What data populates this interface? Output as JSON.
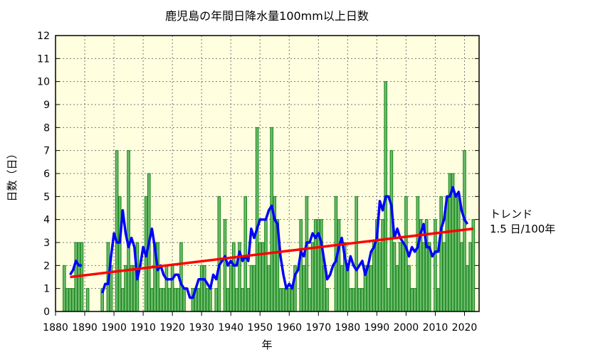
{
  "chart_data": {
    "type": "bar",
    "title": "鹿児島の年間日降水量100mm以上日数",
    "xlabel": "年",
    "ylabel": "日数（日）",
    "xlim": [
      1880,
      2025
    ],
    "ylim": [
      0,
      12
    ],
    "xticks": [
      1880,
      1890,
      1900,
      1910,
      1920,
      1930,
      1940,
      1950,
      1960,
      1970,
      1980,
      1990,
      2000,
      2010,
      2020
    ],
    "yticks": [
      0,
      1,
      2,
      3,
      4,
      5,
      6,
      7,
      8,
      9,
      10,
      11,
      12
    ],
    "grid": true,
    "colors": {
      "background": "#ffffe0",
      "bar_fill": "#6cbb6c",
      "bar_edge": "#17851a",
      "moving_average": "#0000ff",
      "trend": "#ff0000"
    },
    "x": [
      1883,
      1884,
      1885,
      1886,
      1887,
      1888,
      1889,
      1890,
      1891,
      1892,
      1893,
      1894,
      1895,
      1896,
      1897,
      1898,
      1899,
      1900,
      1901,
      1902,
      1903,
      1904,
      1905,
      1906,
      1907,
      1908,
      1909,
      1910,
      1911,
      1912,
      1913,
      1914,
      1915,
      1916,
      1917,
      1918,
      1919,
      1920,
      1921,
      1922,
      1923,
      1924,
      1925,
      1926,
      1927,
      1928,
      1929,
      1930,
      1931,
      1932,
      1933,
      1934,
      1935,
      1936,
      1937,
      1938,
      1939,
      1940,
      1941,
      1942,
      1943,
      1944,
      1945,
      1946,
      1947,
      1948,
      1949,
      1950,
      1951,
      1952,
      1953,
      1954,
      1955,
      1956,
      1957,
      1958,
      1959,
      1960,
      1961,
      1962,
      1963,
      1964,
      1965,
      1966,
      1967,
      1968,
      1969,
      1970,
      1971,
      1972,
      1973,
      1974,
      1975,
      1976,
      1977,
      1978,
      1979,
      1980,
      1981,
      1982,
      1983,
      1984,
      1985,
      1986,
      1987,
      1988,
      1989,
      1990,
      1991,
      1992,
      1993,
      1994,
      1995,
      1996,
      1997,
      1998,
      1999,
      2000,
      2001,
      2002,
      2003,
      2004,
      2005,
      2006,
      2007,
      2008,
      2009,
      2010,
      2011,
      2012,
      2013,
      2014,
      2015,
      2016,
      2017,
      2018,
      2019,
      2020,
      2021,
      2022,
      2023
    ],
    "values": [
      2,
      1,
      1,
      1,
      3,
      3,
      3,
      0,
      1,
      null,
      null,
      0,
      0,
      1,
      0,
      3,
      2,
      0,
      7,
      5,
      1,
      2,
      7,
      2,
      2,
      3,
      0,
      0,
      5,
      6,
      1,
      3,
      3,
      1,
      1,
      2,
      1,
      2,
      1,
      1,
      3,
      1,
      0,
      0,
      1,
      1,
      1,
      2,
      2,
      1,
      1,
      0,
      1,
      5,
      0,
      4,
      1,
      2,
      3,
      1,
      3,
      1,
      5,
      1,
      2,
      2,
      8,
      3,
      3,
      4,
      2,
      8,
      5,
      4,
      1,
      1,
      1,
      1,
      1,
      2,
      0,
      4,
      2,
      5,
      1,
      3,
      4,
      4,
      4,
      2,
      1,
      0,
      0,
      5,
      4,
      2,
      3,
      2,
      1,
      1,
      5,
      1,
      1,
      2,
      2,
      2,
      3,
      4,
      3,
      4,
      10,
      1,
      7,
      3,
      2,
      3,
      3,
      5,
      2,
      1,
      1,
      5,
      4,
      3,
      4,
      3,
      0,
      4,
      1,
      5,
      3,
      5,
      6,
      6,
      5,
      5,
      3,
      7,
      2,
      3,
      4
    ],
    "moving_average_window": 5,
    "trend": {
      "x": [
        1885,
        2023
      ],
      "y": [
        1.5,
        3.6
      ]
    },
    "annotations": {
      "trend_label": "トレンド",
      "trend_value": "1.5 日/100年"
    }
  }
}
